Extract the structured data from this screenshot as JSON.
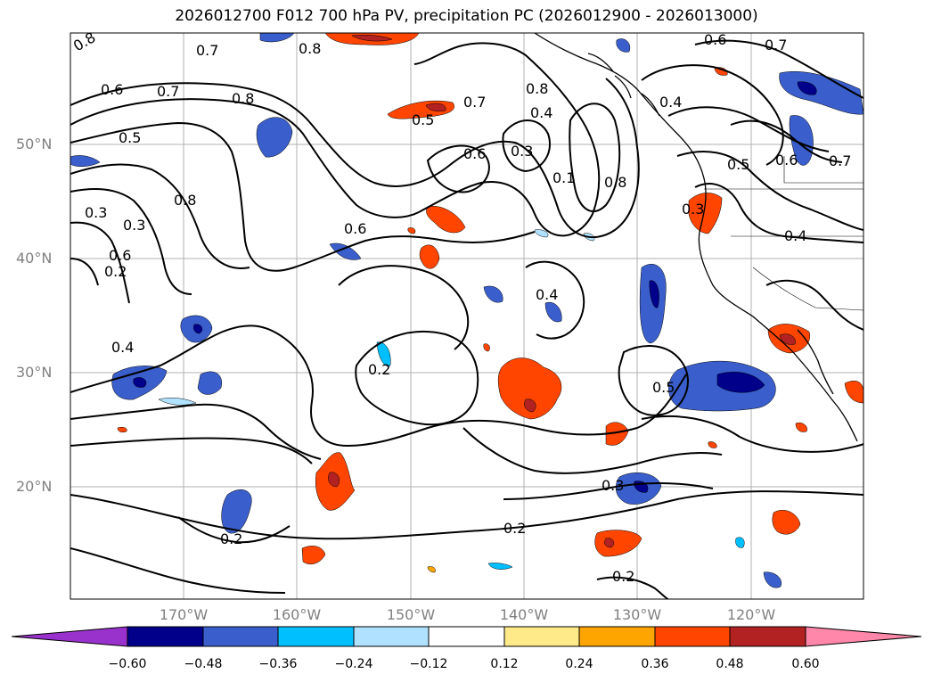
{
  "title": "2026012700 F012 700 hPa PV, precipitation PC (2026012900 - 2026013000)",
  "lat_labels": [
    "50°N",
    "40°N",
    "30°N",
    "20°N"
  ],
  "lon_labels": [
    "170°W",
    "160°W",
    "150°W",
    "140°W",
    "130°W",
    "120°W"
  ],
  "contour_labels": [
    "0.8",
    "0.7",
    "0.6",
    "0.7",
    "0.8",
    "0.5",
    "0.6",
    "0.8",
    "0.3",
    "0.3",
    "0.2",
    "0.6",
    "0.4",
    "0.8",
    "0.5",
    "0.6",
    "0.3",
    "0.7",
    "0.8",
    "0.4",
    "0.4",
    "0.6",
    "0.7",
    "0.1",
    "0.8",
    "0.4",
    "0.5",
    "0.6",
    "0.7",
    "0.4",
    "0.3",
    "0.5",
    "0.2",
    "0.3",
    "0.2",
    "0.2",
    "0.2"
  ],
  "colorbar": {
    "colors": [
      "#9932cc",
      "#00008b",
      "#3a5fcd",
      "#00bfff",
      "#b0e2ff",
      "#ffffff",
      "#ffea8a",
      "#ffa500",
      "#ff4500",
      "#b22222",
      "#ff88aa"
    ],
    "ticks": [
      "−0.60",
      "−0.48",
      "−0.36",
      "−0.24",
      "−0.12",
      "0.12",
      "0.24",
      "0.36",
      "0.48",
      "0.60"
    ]
  }
}
